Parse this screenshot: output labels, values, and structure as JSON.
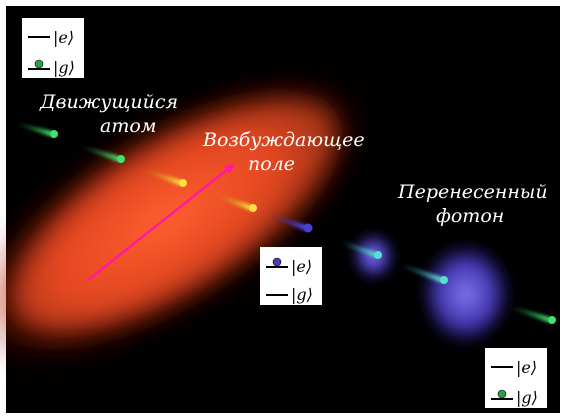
{
  "labels": {
    "moving_atom_line1": "Движущийся",
    "moving_atom_line2": "атом",
    "excitation_field_line1": "Возбуждающее",
    "excitation_field_line2": "поле",
    "transferred_photon_line1": "Перенесенный",
    "transferred_photon_line2": "фотон"
  },
  "legends": {
    "top_left": {
      "upper_state": "|e⟩",
      "lower_state": "|g⟩",
      "occupied": "g",
      "dot_color": "#2e9e4a"
    },
    "middle": {
      "upper_state": "|e⟩",
      "lower_state": "|g⟩",
      "occupied": "e",
      "dot_color": "#4a3fb0"
    },
    "bottom_right": {
      "upper_state": "|e⟩",
      "lower_state": "|g⟩",
      "occupied": "g",
      "dot_color": "#2e9e4a"
    }
  },
  "colors": {
    "background": "#000000",
    "field_beam": "#ff5a2a",
    "arrow": "#ff1aa0",
    "atom_ground": "#33cc55",
    "atom_excited_transit": "#ffd21a",
    "atom_excited": "#4a3fd0",
    "photon_glow": "#6a5cff"
  }
}
